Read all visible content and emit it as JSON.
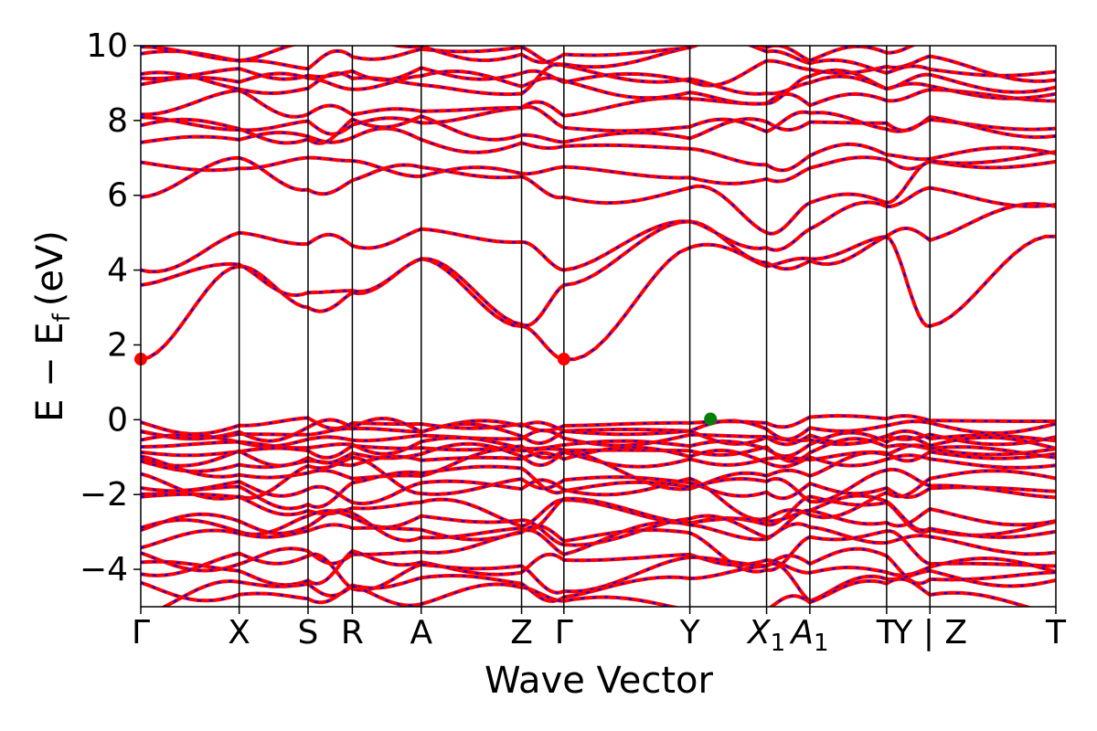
{
  "chart_data": {
    "type": "line",
    "title": "",
    "xlabel": "Wave Vector",
    "ylabel": "E − E",
    "ylabel_subscript": "f",
    "ylabel_unit": "(eV)",
    "ylim": [
      -5,
      10
    ],
    "yticks": [
      {
        "value": 10,
        "label": "10"
      },
      {
        "value": 8,
        "label": "8"
      },
      {
        "value": 6,
        "label": "6"
      },
      {
        "value": 4,
        "label": "4"
      },
      {
        "value": 2,
        "label": "2"
      },
      {
        "value": 0,
        "label": "0"
      },
      {
        "value": -2,
        "label": "−2"
      },
      {
        "value": -4,
        "label": "−4"
      }
    ],
    "kpath": [
      {
        "k": 0.0,
        "label": "Γ"
      },
      {
        "k": 1.0,
        "label": "X"
      },
      {
        "k": 1.7,
        "label": "S"
      },
      {
        "k": 2.15,
        "label": "R"
      },
      {
        "k": 2.85,
        "label": "A"
      },
      {
        "k": 3.87,
        "label": "Z"
      },
      {
        "k": 4.3,
        "label": "Γ"
      },
      {
        "k": 5.58,
        "label": "Y"
      },
      {
        "k": 6.36,
        "label": "X",
        "sub": "1"
      },
      {
        "k": 6.8,
        "label": "A",
        "sub": "1"
      },
      {
        "k": 7.58,
        "label": "T"
      },
      {
        "k": 8.02,
        "label": "Y | Z"
      },
      {
        "k": 9.3,
        "label": "T"
      }
    ],
    "xlim": [
      0,
      9.3
    ],
    "series_style": {
      "bands_color": "#ff0000",
      "overlay_color": "#0000ff"
    },
    "markers": [
      {
        "name": "CBM",
        "k": 0.0,
        "E": 1.62,
        "color": "#ff0000"
      },
      {
        "name": "CBM",
        "k": 4.3,
        "E": 1.62,
        "color": "#ff0000"
      },
      {
        "name": "VBM",
        "k": 5.79,
        "E": 0.02,
        "color": "#008000"
      }
    ],
    "grid": false,
    "legend": "none"
  }
}
